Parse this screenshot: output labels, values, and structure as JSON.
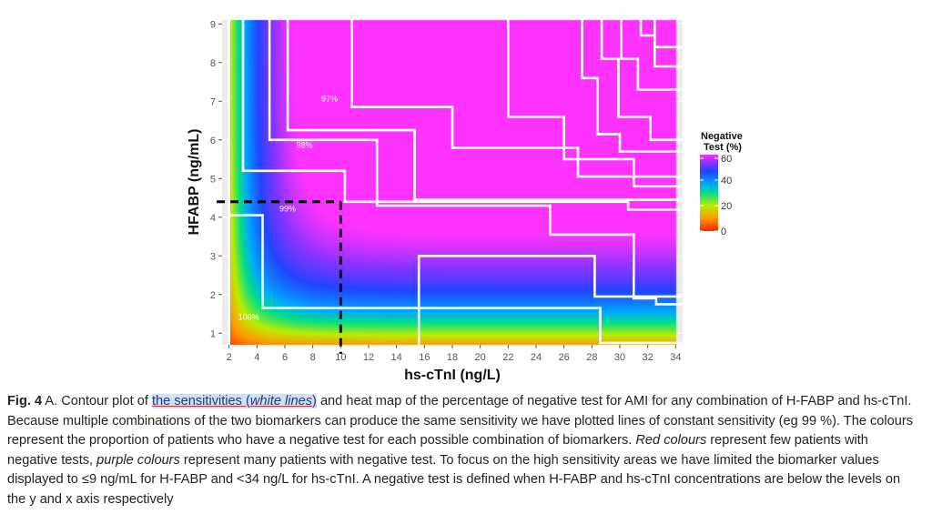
{
  "chart_data": {
    "type": "heatmap",
    "xlabel": "hs-cTnI (ng/L)",
    "ylabel": "HFABP (ng/mL)",
    "x_ticks": [
      2,
      4,
      6,
      8,
      10,
      12,
      14,
      16,
      18,
      20,
      22,
      24,
      26,
      28,
      30,
      32,
      34
    ],
    "y_ticks": [
      1,
      2,
      3,
      4,
      5,
      6,
      7,
      8,
      9
    ],
    "xlim": [
      1.5,
      34.5
    ],
    "ylim": [
      0.7,
      9.1
    ],
    "legend": {
      "title_line1": "Negative",
      "title_line2": "Test (%)",
      "ticks": [
        0,
        20,
        40,
        60
      ],
      "placement": "right"
    },
    "colors": {
      "panel_bg": "#ebebeb",
      "contour": "#ffffff",
      "cutoff": "#000000"
    },
    "cutoff": {
      "x": 10,
      "y": 4.4
    },
    "labels": [
      {
        "text": "97%",
        "x": 9.2,
        "y": 7.0
      },
      {
        "text": "98%",
        "x": 7.4,
        "y": 5.8
      },
      {
        "text": "99%",
        "x": 6.2,
        "y": 4.15
      },
      {
        "text": "100%",
        "x": 3.4,
        "y": 1.35
      }
    ],
    "contours": [
      [
        [
          2,
          0.7
        ],
        [
          2,
          9.1
        ]
      ],
      [
        [
          3.0,
          9.1
        ],
        [
          3.0,
          5.2
        ],
        [
          10.3,
          5.2
        ],
        [
          10.3,
          4.4
        ],
        [
          30.6,
          4.4
        ],
        [
          30.6,
          4.2
        ],
        [
          34.5,
          4.2
        ]
      ],
      [
        [
          2,
          4.05
        ],
        [
          4.4,
          4.05
        ],
        [
          4.4,
          1.65
        ],
        [
          28.6,
          1.65
        ],
        [
          28.6,
          0.75
        ],
        [
          34.5,
          0.75
        ]
      ],
      [
        [
          4.9,
          9.1
        ],
        [
          4.9,
          6.0
        ],
        [
          12.6,
          6.0
        ],
        [
          12.6,
          4.3
        ],
        [
          25,
          4.3
        ],
        [
          25,
          3.55
        ],
        [
          31,
          3.55
        ],
        [
          31,
          1.9
        ],
        [
          32.6,
          1.9
        ],
        [
          32.6,
          1.75
        ],
        [
          34.5,
          1.75
        ]
      ],
      [
        [
          6.2,
          9.1
        ],
        [
          6.2,
          6.25
        ],
        [
          15.3,
          6.25
        ],
        [
          15.3,
          4.45
        ],
        [
          34.5,
          4.45
        ]
      ],
      [
        [
          10.8,
          9.1
        ],
        [
          10.8,
          6.85
        ],
        [
          18,
          6.85
        ],
        [
          18,
          5.8
        ],
        [
          27,
          5.8
        ],
        [
          27,
          5.05
        ],
        [
          34.5,
          5.05
        ]
      ],
      [
        [
          22,
          9.1
        ],
        [
          22,
          6.6
        ],
        [
          26,
          6.6
        ],
        [
          26,
          5.5
        ],
        [
          31,
          5.5
        ],
        [
          31,
          4.8
        ],
        [
          34.5,
          4.8
        ]
      ],
      [
        [
          27.3,
          9.1
        ],
        [
          27.3,
          7.6
        ],
        [
          28.4,
          7.6
        ],
        [
          28.4,
          6.15
        ],
        [
          30,
          6.15
        ],
        [
          30,
          5.7
        ],
        [
          34.5,
          5.7
        ]
      ],
      [
        [
          28.7,
          9.1
        ],
        [
          28.7,
          8.1
        ],
        [
          29.9,
          8.1
        ],
        [
          29.9,
          6.6
        ],
        [
          32.2,
          6.6
        ],
        [
          32.2,
          6.0
        ],
        [
          34.5,
          6.0
        ]
      ],
      [
        [
          30.1,
          9.1
        ],
        [
          30.1,
          8.1
        ],
        [
          31.3,
          8.1
        ],
        [
          31.3,
          7.3
        ],
        [
          34.5,
          7.3
        ]
      ],
      [
        [
          31.5,
          9.1
        ],
        [
          31.5,
          8.7
        ],
        [
          32.5,
          8.7
        ],
        [
          32.5,
          7.9
        ],
        [
          34.5,
          7.9
        ]
      ],
      [
        [
          32.5,
          9.1
        ],
        [
          32.5,
          8.4
        ],
        [
          34.5,
          8.4
        ]
      ],
      [
        [
          15.6,
          0.7
        ],
        [
          15.6,
          3.0
        ],
        [
          28.2,
          3.0
        ],
        [
          28.2,
          1.95
        ],
        [
          34.5,
          1.95
        ]
      ]
    ]
  },
  "caption": {
    "label": "Fig. 4",
    "part1": " A. Contour plot of ",
    "highlight_a": "the sensitivities (",
    "highlight_italic": "white lines",
    "highlight_b": ")",
    "part2": " and heat map of the percentage of negative test for AMI for any combination of H-FABP and hs-cTnI. Because multiple combinations of the two biomarkers can produce the same sensitivity we have plotted lines of constant sensitivity (eg 99 %). The colours represent the proportion of patients who have a negative test for each possible combination of biomarkers. ",
    "red_italic": "Red colours",
    "part3": " represent few patients with negative tests, ",
    "purple_italic": "purple colours",
    "part4": " represent many patients with negative test. To focus on the high sensitivity areas we have limited the biomarker values displayed to ≤9 ng/mL for H-FABP and <34 ng/L for hs-cTnI. A negative test is defined when H-FABP and hs-cTnI concentrations are below the levels on the y and x axis respectively"
  }
}
